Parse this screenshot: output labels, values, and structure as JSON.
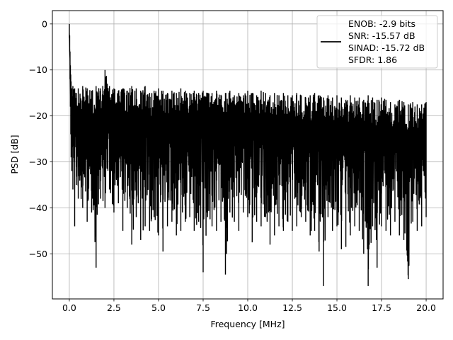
{
  "chart_data": {
    "type": "line",
    "title": "",
    "xlabel": "Frequency [MHz]",
    "ylabel": "PSD [dB]",
    "xlim": [
      -0.95,
      20.95
    ],
    "ylim": [
      -59.8,
      2.9
    ],
    "xticks": [
      0.0,
      2.5,
      5.0,
      7.5,
      10.0,
      12.5,
      15.0,
      17.5,
      20.0
    ],
    "xtick_labels": [
      "0.0",
      "2.5",
      "5.0",
      "7.5",
      "10.0",
      "12.5",
      "15.0",
      "17.5",
      "20.0"
    ],
    "yticks": [
      0,
      -10,
      -20,
      -30,
      -40,
      -50
    ],
    "ytick_labels": [
      "0",
      "−10",
      "−20",
      "−30",
      "−40",
      "−50"
    ],
    "grid": true,
    "legend_position": "top-right",
    "series_color": "#000000",
    "legend": {
      "lines": [
        "ENOB: -2.9 bits",
        "SNR: -15.57 dB",
        "SINAD: -15.72 dB",
        "SFDR: 1.86"
      ]
    },
    "series": [
      {
        "x": [
          0.0,
          0.02,
          0.04,
          0.06,
          0.08,
          0.1,
          0.14,
          0.2,
          0.3,
          0.4,
          0.5,
          0.75,
          1.0,
          1.25,
          1.5,
          1.75,
          2.0,
          2.25,
          2.5,
          2.75,
          3.0,
          3.25,
          3.5,
          3.75,
          4.0,
          4.25,
          4.5,
          4.75,
          5.0,
          5.25,
          5.5,
          5.75,
          6.0,
          6.25,
          6.5,
          6.75,
          7.0,
          7.25,
          7.5,
          7.75,
          8.0,
          8.25,
          8.5,
          8.75,
          9.0,
          9.25,
          9.5,
          9.75,
          10.0,
          10.25,
          10.5,
          10.75,
          11.0,
          11.25,
          11.5,
          11.75,
          12.0,
          12.25,
          12.5,
          12.75,
          13.0,
          13.25,
          13.5,
          13.75,
          14.0,
          14.25,
          14.5,
          14.75,
          15.0,
          15.25,
          15.5,
          15.75,
          16.0,
          16.25,
          16.5,
          16.75,
          17.0,
          17.25,
          17.5,
          17.75,
          18.0,
          18.25,
          18.5,
          18.75,
          19.0,
          19.25,
          19.5,
          19.75,
          20.0
        ],
        "upper": [
          0.0,
          -2.5,
          -6.0,
          -9.0,
          -11.0,
          -12.5,
          -14.0,
          -13.5,
          -14.0,
          -15.0,
          -14.0,
          -13.5,
          -14.0,
          -14.5,
          -13.5,
          -14.0,
          -10.0,
          -13.5,
          -14.0,
          -14.5,
          -14.0,
          -14.5,
          -13.5,
          -14.0,
          -14.5,
          -13.5,
          -15.0,
          -14.5,
          -14.0,
          -14.5,
          -15.0,
          -14.5,
          -15.0,
          -14.0,
          -14.5,
          -15.0,
          -14.5,
          -15.0,
          -14.5,
          -15.0,
          -15.0,
          -14.5,
          -15.5,
          -15.0,
          -14.5,
          -15.5,
          -15.0,
          -15.5,
          -14.5,
          -15.0,
          -15.5,
          -14.5,
          -15.0,
          -15.5,
          -15.0,
          -15.5,
          -15.0,
          -15.5,
          -15.5,
          -15.0,
          -15.5,
          -16.0,
          -15.5,
          -15.0,
          -15.5,
          -16.0,
          -15.5,
          -16.0,
          -15.5,
          -16.0,
          -16.5,
          -15.5,
          -16.0,
          -16.0,
          -16.5,
          -15.5,
          -16.0,
          -16.5,
          -16.0,
          -16.5,
          -17.0,
          -17.5,
          -16.5,
          -17.0,
          -17.5,
          -17.0,
          -17.5,
          -17.5,
          -17.0
        ],
        "lower": [
          -3.0,
          -6.0,
          -12.0,
          -18.0,
          -24.0,
          -29.0,
          -32.0,
          -36.0,
          -44.0,
          -35.0,
          -38.0,
          -40.0,
          -43.0,
          -41.0,
          -53.0,
          -38.0,
          -40.0,
          -36.0,
          -41.0,
          -39.0,
          -45.0,
          -40.0,
          -48.0,
          -42.0,
          -47.0,
          -44.0,
          -45.0,
          -42.0,
          -46.0,
          -49.5,
          -44.0,
          -43.0,
          -46.0,
          -45.0,
          -43.0,
          -42.0,
          -45.0,
          -43.0,
          -54.0,
          -42.0,
          -44.0,
          -45.0,
          -43.0,
          -54.5,
          -41.0,
          -43.0,
          -45.0,
          -41.0,
          -42.0,
          -47.5,
          -43.0,
          -44.0,
          -42.0,
          -48.0,
          -46.0,
          -44.0,
          -45.0,
          -43.0,
          -45.0,
          -44.0,
          -42.0,
          -43.0,
          -46.0,
          -45.0,
          -49.5,
          -57.0,
          -42.0,
          -45.0,
          -44.0,
          -49.0,
          -48.5,
          -46.0,
          -44.0,
          -45.0,
          -50.0,
          -57.0,
          -44.0,
          -53.0,
          -44.0,
          -45.0,
          -46.0,
          -43.0,
          -46.0,
          -47.0,
          -55.5,
          -43.0,
          -45.0,
          -44.0,
          -42.0
        ]
      }
    ]
  }
}
